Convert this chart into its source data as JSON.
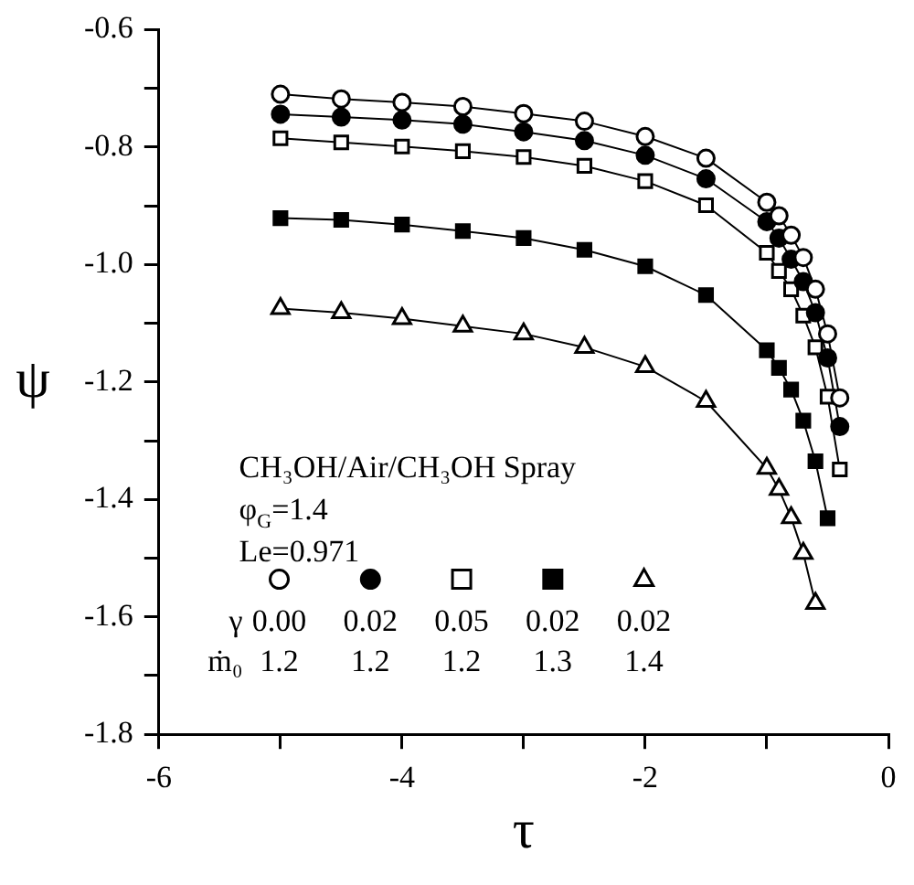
{
  "chart_data": {
    "type": "line",
    "xlabel": "τ",
    "ylabel": "ψ",
    "xlim": [
      -6,
      0
    ],
    "xticks": [
      -6,
      {
        "value": -5,
        "label": null
      },
      -4,
      {
        "value": -3,
        "label": null
      },
      -2,
      {
        "value": -1,
        "label": null
      },
      0
    ],
    "ylim": [
      -1.8,
      -0.6
    ],
    "yticks": [
      -0.6,
      {
        "value": -0.7,
        "label": null
      },
      -0.8,
      {
        "value": -0.9,
        "label": null
      },
      {
        "value": -1.0,
        "label": "-1.0"
      },
      {
        "value": -1.1,
        "label": null
      },
      -1.2,
      {
        "value": -1.3,
        "label": null
      },
      -1.4,
      {
        "value": -1.5,
        "label": null
      },
      -1.6,
      {
        "value": -1.7,
        "label": null
      },
      -1.8
    ],
    "legend": "bottom left",
    "legend_title": "γ\nṁ₀",
    "line_style": "solid",
    "annotations": [
      "CH₃OH/Air/CH₃OH Spray",
      "φ$_{G}$=1.4",
      "Le=0.971"
    ],
    "series": [
      {
        "name": "0.00\n1.2",
        "color": "#ffffff",
        "marker": "circle",
        "x": [
          -5,
          -4.5,
          -4,
          -3.5,
          -3,
          -2.5,
          -2,
          -1.5,
          -1.0,
          -0.9,
          -0.8,
          -0.7,
          -0.6,
          -0.5,
          -0.4
        ],
        "values": [
          -0.71,
          -0.718,
          -0.724,
          -0.731,
          -0.743,
          -0.756,
          -0.782,
          -0.819,
          -0.894,
          -0.917,
          -0.95,
          -0.988,
          -1.042,
          -1.118,
          -1.227
        ]
      },
      {
        "name": "0.02\n1.2",
        "color": "#000000",
        "marker": "circle",
        "x": [
          -5,
          -4.5,
          -4,
          -3.5,
          -3,
          -2.5,
          -2,
          -1.5,
          -1.0,
          -0.9,
          -0.8,
          -0.7,
          -0.6,
          -0.5,
          -0.4
        ],
        "values": [
          -0.744,
          -0.749,
          -0.754,
          -0.761,
          -0.774,
          -0.789,
          -0.814,
          -0.854,
          -0.927,
          -0.955,
          -0.991,
          -1.029,
          -1.082,
          -1.159,
          -1.276
        ]
      },
      {
        "name": "0.05\n1.2",
        "color": "#ffffff",
        "marker": "square",
        "x": [
          -5,
          -4.5,
          -4,
          -3.5,
          -3,
          -2.5,
          -2,
          -1.5,
          -1.0,
          -0.9,
          -0.8,
          -0.7,
          -0.6,
          -0.5,
          -0.4
        ],
        "values": [
          -0.785,
          -0.792,
          -0.799,
          -0.807,
          -0.817,
          -0.832,
          -0.858,
          -0.899,
          -0.98,
          -1.011,
          -1.042,
          -1.087,
          -1.141,
          -1.225,
          -1.349
        ]
      },
      {
        "name": "0.02\n1.3",
        "color": "#000000",
        "marker": "square",
        "x": [
          -5,
          -4.5,
          -4,
          -3.5,
          -3,
          -2.5,
          -2,
          -1.5,
          -1.0,
          -0.9,
          -0.8,
          -0.7,
          -0.6,
          -0.5
        ],
        "values": [
          -0.921,
          -0.924,
          -0.932,
          -0.943,
          -0.955,
          -0.975,
          -1.003,
          -1.052,
          -1.146,
          -1.176,
          -1.213,
          -1.266,
          -1.335,
          -1.432
        ]
      },
      {
        "name": "0.02\n1.4",
        "color": "#ffffff",
        "marker": "triangle",
        "x": [
          -5,
          -4.5,
          -4,
          -3.5,
          -3,
          -2.5,
          -2,
          -1.5,
          -1.0,
          -0.9,
          -0.8,
          -0.7,
          -0.6
        ],
        "values": [
          -1.075,
          -1.082,
          -1.092,
          -1.105,
          -1.118,
          -1.141,
          -1.174,
          -1.233,
          -1.347,
          -1.383,
          -1.431,
          -1.492,
          -1.577
        ]
      }
    ]
  }
}
